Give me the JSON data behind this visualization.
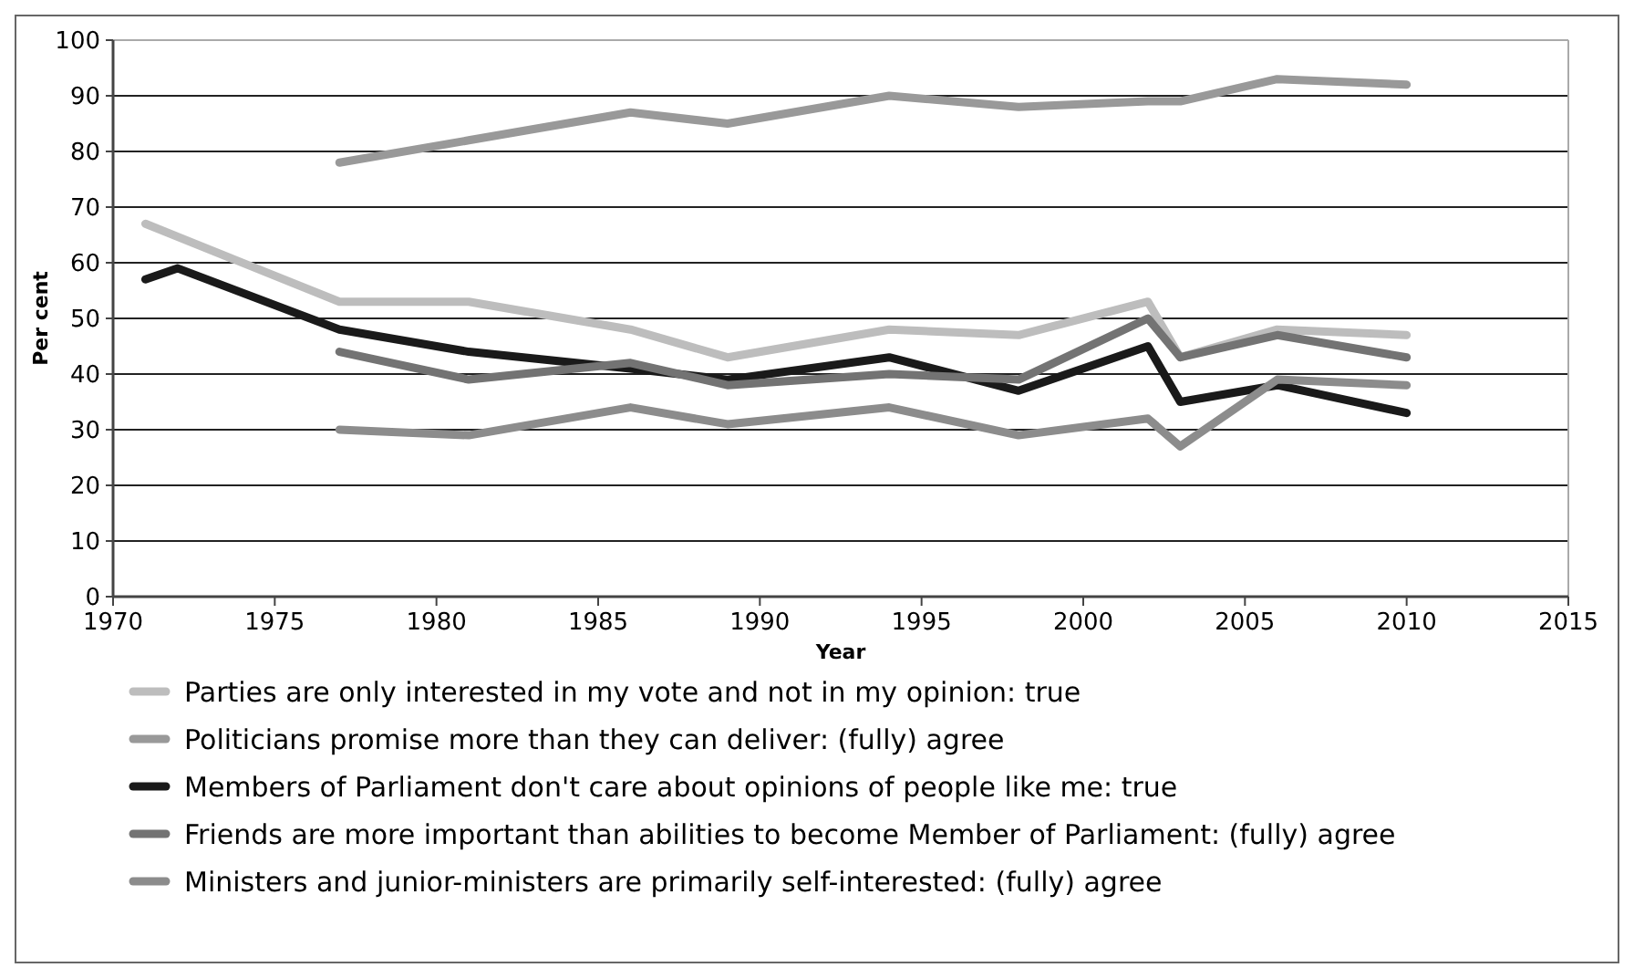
{
  "chart_data": {
    "type": "line",
    "xlabel": "Year",
    "ylabel": "Per cent",
    "xlim": [
      1970,
      2015
    ],
    "xticks": [
      1970,
      1975,
      1980,
      1985,
      1990,
      1995,
      2000,
      2005,
      2010,
      2015
    ],
    "ylim": [
      0,
      100
    ],
    "yticks": [
      0,
      10,
      20,
      30,
      40,
      50,
      60,
      70,
      80,
      90,
      100
    ],
    "grid": "y",
    "legend": "bottom",
    "marker": "none",
    "line_style": "solid",
    "series": [
      {
        "name": "Parties are only interested in my vote and not in my opinion: true",
        "color": "#bdbdbd",
        "x": [
          1971,
          1977,
          1981,
          1986,
          1989,
          1994,
          1998,
          2002,
          2003,
          2006,
          2010
        ],
        "values": [
          67,
          53,
          53,
          48,
          43,
          48,
          47,
          53,
          43,
          48,
          47
        ]
      },
      {
        "name": "Politicians promise more than they can deliver: (fully) agree",
        "color": "#999999",
        "x": [
          1977,
          1981,
          1986,
          1989,
          1994,
          1998,
          2002,
          2003,
          2006,
          2010
        ],
        "values": [
          78,
          82,
          87,
          85,
          90,
          88,
          89,
          89,
          93,
          92
        ]
      },
      {
        "name": "Members of Parliament don't care about opinions of people like me:  true",
        "color": "#1a1a1a",
        "x": [
          1971,
          1972,
          1977,
          1981,
          1986,
          1989,
          1994,
          1998,
          2002,
          2003,
          2006,
          2010
        ],
        "values": [
          57,
          59,
          48,
          44,
          41,
          39,
          43,
          37,
          45,
          35,
          38,
          33
        ]
      },
      {
        "name": "Friends are more important than abilities to become Member of Parliament: (fully) agree",
        "color": "#737373",
        "x": [
          1977,
          1981,
          1986,
          1989,
          1994,
          1998,
          2002,
          2003,
          2006,
          2010
        ],
        "values": [
          44,
          39,
          42,
          38,
          40,
          39,
          50,
          43,
          47,
          43
        ]
      },
      {
        "name": "Ministers and junior-ministers are primarily self-interested: (fully) agree",
        "color": "#8c8c8c",
        "x": [
          1977,
          1981,
          1986,
          1989,
          1994,
          1998,
          2002,
          2003,
          2006,
          2010
        ],
        "values": [
          30,
          29,
          34,
          31,
          34,
          29,
          32,
          27,
          39,
          38
        ]
      }
    ]
  }
}
